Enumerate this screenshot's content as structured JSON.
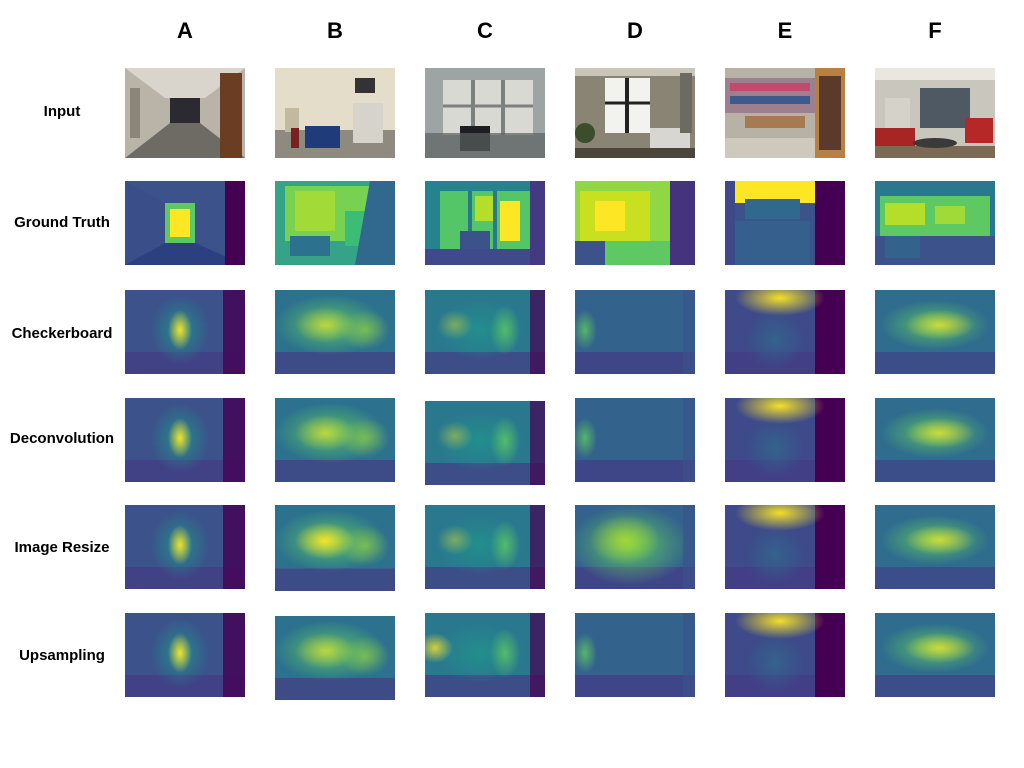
{
  "columns": [
    "A",
    "B",
    "C",
    "D",
    "E",
    "F"
  ],
  "rows": [
    "Input",
    "Ground Truth",
    "Checkerboard",
    "Deconvolution",
    "Image Resize",
    "Upsampling"
  ],
  "colors": {
    "viridis_dark": "#440154",
    "viridis_blue": "#3b528b",
    "viridis_teal": "#21918c",
    "viridis_green": "#5ec962",
    "viridis_yellow": "#fde725"
  },
  "cell_content": [
    "photo",
    "ground-truth-depth-map",
    "predicted-depth-map",
    "predicted-depth-map",
    "predicted-depth-map",
    "predicted-depth-map"
  ]
}
